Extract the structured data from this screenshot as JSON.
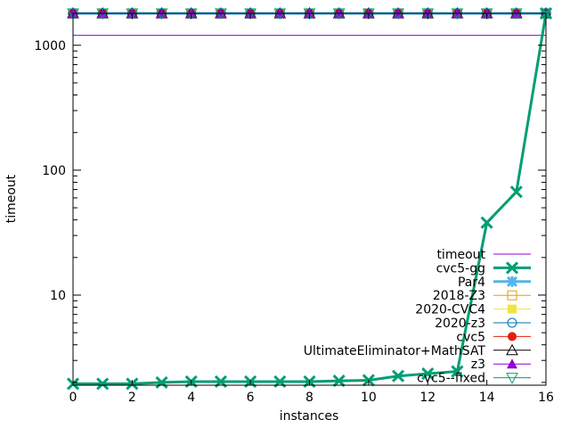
{
  "chart_data": {
    "type": "line",
    "title": "",
    "xlabel": "instances",
    "ylabel": "timeout",
    "xlim": [
      0,
      16
    ],
    "ylim": [
      1.9,
      1800
    ],
    "yscale": "log",
    "x_ticks": [
      "0",
      "2",
      "4",
      "6",
      "8",
      "10",
      "12",
      "14",
      "16"
    ],
    "y_ticks": [
      "10",
      "100",
      "1000"
    ],
    "grid": false,
    "legend_position": "bottom-right",
    "timeout_value": 1200,
    "series": [
      {
        "name": "timeout",
        "color": "#9400d3",
        "marker": "none",
        "line_width": 1,
        "x": [
          0,
          16
        ],
        "y": [
          1200,
          1200
        ]
      },
      {
        "name": "cvc5-gg",
        "color": "#009e73",
        "marker": "x",
        "line_width": 3,
        "x": [
          0,
          1,
          2,
          3,
          4,
          5,
          6,
          7,
          8,
          9,
          10,
          11,
          12,
          13,
          14,
          15,
          16
        ],
        "y": [
          1.95,
          1.95,
          1.95,
          2.0,
          2.03,
          2.03,
          2.03,
          2.03,
          2.03,
          2.06,
          2.08,
          2.25,
          2.35,
          2.45,
          38,
          67,
          1800
        ]
      },
      {
        "name": "Par4",
        "color": "#56b4e9",
        "marker": "star",
        "line_width": 3,
        "x": [
          0,
          1,
          2,
          3,
          4,
          5,
          6,
          7,
          8,
          9,
          10,
          11,
          12,
          13,
          14,
          15,
          16
        ],
        "y": [
          1800,
          1800,
          1800,
          1800,
          1800,
          1800,
          1800,
          1800,
          1800,
          1800,
          1800,
          1800,
          1800,
          1800,
          1800,
          1800,
          1800
        ]
      },
      {
        "name": "2018-Z3",
        "color": "#e69f00",
        "marker": "open-square",
        "line_width": 1,
        "x": [
          0,
          1,
          2,
          3,
          4,
          5,
          6,
          7,
          8,
          9,
          10,
          11,
          12,
          13,
          14,
          15,
          16
        ],
        "y": [
          1800,
          1800,
          1800,
          1800,
          1800,
          1800,
          1800,
          1800,
          1800,
          1800,
          1800,
          1800,
          1800,
          1800,
          1800,
          1800,
          1800
        ]
      },
      {
        "name": "2020-CVC4",
        "color": "#f0e442",
        "marker": "filled-square",
        "line_width": 1,
        "x": [
          0,
          1,
          2,
          3,
          4,
          5,
          6,
          7,
          8,
          9,
          10,
          11,
          12,
          13,
          14,
          15,
          16
        ],
        "y": [
          1800,
          1800,
          1800,
          1800,
          1800,
          1800,
          1800,
          1800,
          1800,
          1800,
          1800,
          1800,
          1800,
          1800,
          1800,
          1800,
          1800
        ]
      },
      {
        "name": "2020-z3",
        "color": "#0072b2",
        "marker": "open-circle",
        "line_width": 1,
        "x": [
          0,
          1,
          2,
          3,
          4,
          5,
          6,
          7,
          8,
          9,
          10,
          11,
          12,
          13,
          14,
          15,
          16
        ],
        "y": [
          1800,
          1800,
          1800,
          1800,
          1800,
          1800,
          1800,
          1800,
          1800,
          1800,
          1800,
          1800,
          1800,
          1800,
          1800,
          1800,
          1800
        ]
      },
      {
        "name": "cvc5",
        "color": "#e51e10",
        "marker": "filled-circle",
        "line_width": 1,
        "x": [
          0,
          1,
          2,
          3,
          4,
          5,
          6,
          7,
          8,
          9,
          10,
          11,
          12,
          13,
          14,
          15,
          16
        ],
        "y": [
          1800,
          1800,
          1800,
          1800,
          1800,
          1800,
          1800,
          1800,
          1800,
          1800,
          1800,
          1800,
          1800,
          1800,
          1800,
          1800,
          1800
        ]
      },
      {
        "name": "UltimateEliminator+MathSAT",
        "color": "#000000",
        "marker": "open-triangle-up",
        "line_width": 1,
        "x": [
          0,
          1,
          2,
          3,
          4,
          5,
          6,
          7,
          8,
          9,
          10,
          11,
          12,
          13,
          14,
          15,
          16
        ],
        "y": [
          1800,
          1800,
          1800,
          1800,
          1800,
          1800,
          1800,
          1800,
          1800,
          1800,
          1800,
          1800,
          1800,
          1800,
          1800,
          1800,
          1800
        ]
      },
      {
        "name": "z3",
        "color": "#9400d3",
        "marker": "filled-triangle-up",
        "line_width": 1,
        "x": [
          0,
          1,
          2,
          3,
          4,
          5,
          6,
          7,
          8,
          9,
          10,
          11,
          12,
          13,
          14,
          15,
          16
        ],
        "y": [
          1800,
          1800,
          1800,
          1800,
          1800,
          1800,
          1800,
          1800,
          1800,
          1800,
          1800,
          1800,
          1800,
          1800,
          1800,
          1800,
          1800
        ]
      },
      {
        "name": "cvc5--fixed",
        "color": "#009e73",
        "marker": "open-triangle-down",
        "line_width": 1,
        "x": [
          0,
          1,
          2,
          3,
          4,
          5,
          6,
          7,
          8,
          9,
          10,
          11,
          12,
          13,
          14,
          15,
          16
        ],
        "y": [
          1800,
          1800,
          1800,
          1800,
          1800,
          1800,
          1800,
          1800,
          1800,
          1800,
          1800,
          1800,
          1800,
          1800,
          1800,
          1800,
          1800
        ]
      }
    ]
  }
}
